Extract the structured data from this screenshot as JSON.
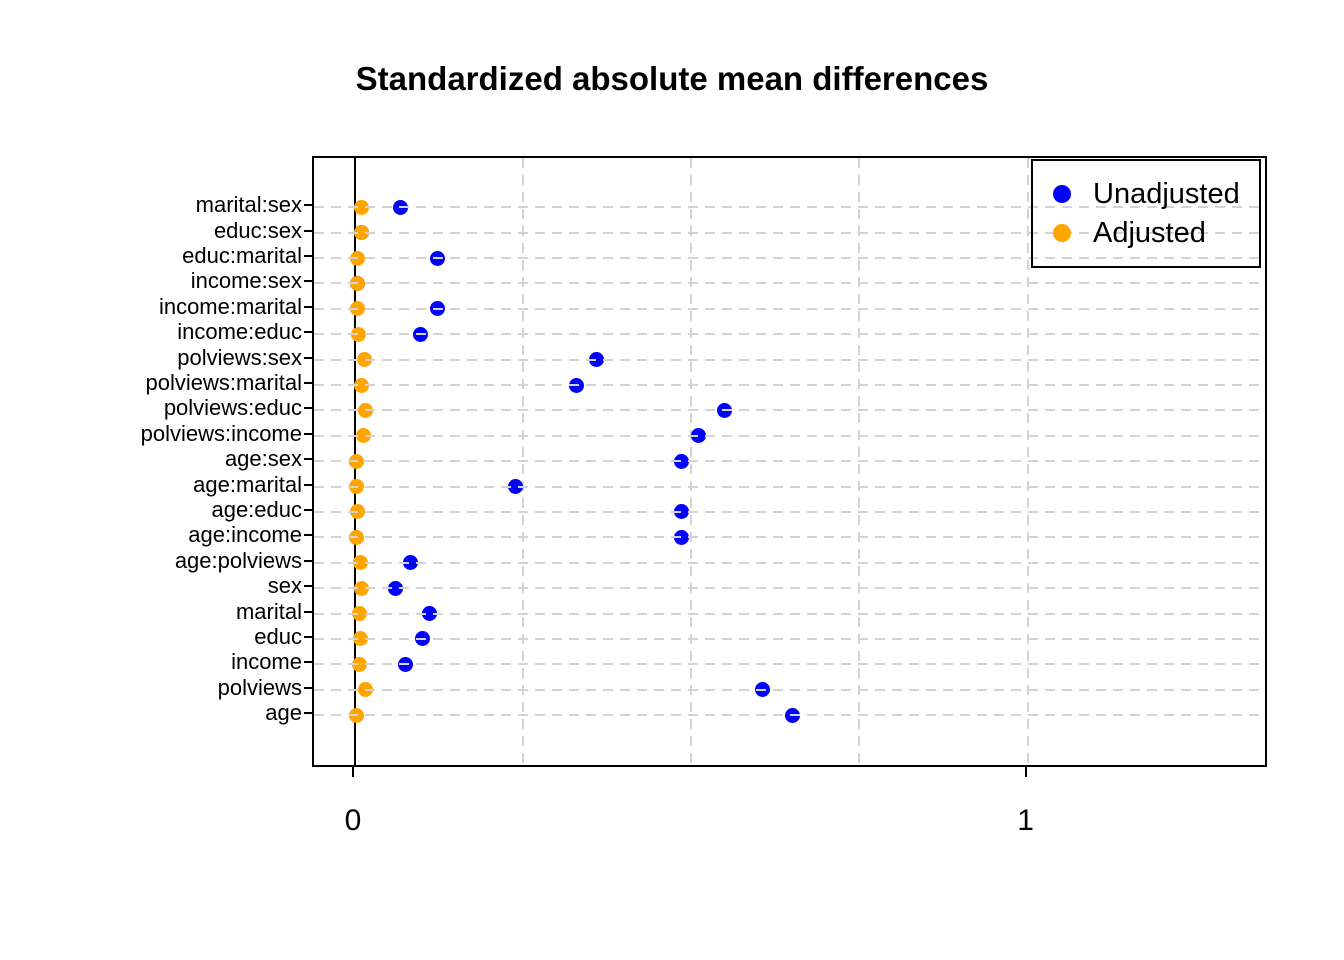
{
  "title": "Standardized absolute mean differences",
  "legend": {
    "position": "top-right",
    "items": [
      {
        "label": "Unadjusted",
        "color": "#0000ff"
      },
      {
        "label": "Adjusted",
        "color": "#ffa500"
      }
    ]
  },
  "axis": {
    "x_tick_labels": [
      "0",
      "1"
    ]
  },
  "chart_data": {
    "type": "scatter",
    "subtype": "horizontal-dot-plot (love plot)",
    "title": "Standardized absolute mean differences",
    "xlabel": "",
    "ylabel": "",
    "xlim": [
      -0.061,
      1.353
    ],
    "x_ticks": [
      0,
      1
    ],
    "x_gridlines": [
      0.25,
      0.5,
      0.75,
      1.0
    ],
    "zero_reference_line": 0,
    "grid": true,
    "legend_position": "top-right",
    "categories": [
      "marital:sex",
      "educ:sex",
      "educ:marital",
      "income:sex",
      "income:marital",
      "income:educ",
      "polviews:sex",
      "polviews:marital",
      "polviews:educ",
      "polviews:income",
      "age:sex",
      "age:marital",
      "age:educ",
      "age:income",
      "age:polviews",
      "sex",
      "marital",
      "educ",
      "income",
      "polviews",
      "age"
    ],
    "series": [
      {
        "name": "Unadjusted",
        "color": "#0000ff",
        "values": [
          0.068,
          0.009,
          0.123,
          0.004,
          0.122,
          0.098,
          0.359,
          0.33,
          0.549,
          0.511,
          0.485,
          0.238,
          0.486,
          0.485,
          0.083,
          0.06,
          0.111,
          0.1,
          0.075,
          0.606,
          0.65
        ]
      },
      {
        "name": "Adjusted",
        "color": "#ffa500",
        "values": [
          0.009,
          0.009,
          0.004,
          0.004,
          0.003,
          0.005,
          0.014,
          0.009,
          0.016,
          0.012,
          0.002,
          0.002,
          0.003,
          0.002,
          0.008,
          0.01,
          0.006,
          0.008,
          0.006,
          0.016,
          0.002
        ]
      }
    ]
  }
}
